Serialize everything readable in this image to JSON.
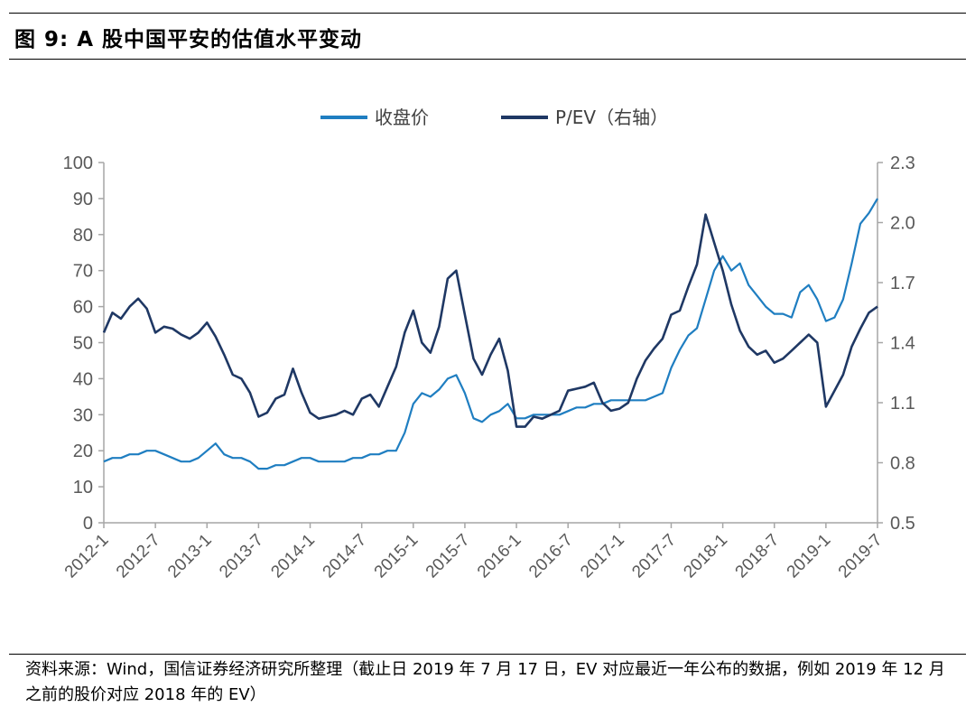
{
  "header": {
    "title": "图 9:  A 股中国平安的估值水平变动"
  },
  "footer": {
    "source": "资料来源：Wind，国信证券经济研究所整理（截止日 2019 年 7 月 17 日，EV 对应最近一年公布的数据，例如 2019 年 12 月之前的股价对应 2018 年的 EV）"
  },
  "chart_data": {
    "type": "line",
    "title": "",
    "legend_position": "top-center",
    "grid": false,
    "x_start": "2012-01",
    "x_end": "2019-07",
    "x_tick_labels": [
      "2012-1",
      "2012-7",
      "2013-1",
      "2013-7",
      "2014-1",
      "2014-7",
      "2015-1",
      "2015-7",
      "2016-1",
      "2016-7",
      "2017-1",
      "2017-7",
      "2018-1",
      "2018-7",
      "2019-1",
      "2019-7"
    ],
    "y_left": {
      "min": 0,
      "max": 100,
      "ticks": [
        "0",
        "10",
        "20",
        "30",
        "40",
        "50",
        "60",
        "70",
        "80",
        "90",
        "100"
      ]
    },
    "y_right": {
      "min": 0.5,
      "max": 2.3,
      "ticks": [
        "0.5",
        "0.8",
        "1.1",
        "1.4",
        "1.7",
        "2.0",
        "2.3"
      ]
    },
    "series": [
      {
        "name": "收盘价",
        "axis": "left",
        "color": "#1f7ec1",
        "x": [
          "2012-01",
          "2012-02",
          "2012-03",
          "2012-04",
          "2012-05",
          "2012-06",
          "2012-07",
          "2012-08",
          "2012-09",
          "2012-10",
          "2012-11",
          "2012-12",
          "2013-01",
          "2013-02",
          "2013-03",
          "2013-04",
          "2013-05",
          "2013-06",
          "2013-07",
          "2013-08",
          "2013-09",
          "2013-10",
          "2013-11",
          "2013-12",
          "2014-01",
          "2014-02",
          "2014-03",
          "2014-04",
          "2014-05",
          "2014-06",
          "2014-07",
          "2014-08",
          "2014-09",
          "2014-10",
          "2014-11",
          "2014-12",
          "2015-01",
          "2015-02",
          "2015-03",
          "2015-04",
          "2015-05",
          "2015-06",
          "2015-07",
          "2015-08",
          "2015-09",
          "2015-10",
          "2015-11",
          "2015-12",
          "2016-01",
          "2016-02",
          "2016-03",
          "2016-04",
          "2016-05",
          "2016-06",
          "2016-07",
          "2016-08",
          "2016-09",
          "2016-10",
          "2016-11",
          "2016-12",
          "2017-01",
          "2017-02",
          "2017-03",
          "2017-04",
          "2017-05",
          "2017-06",
          "2017-07",
          "2017-08",
          "2017-09",
          "2017-10",
          "2017-11",
          "2017-12",
          "2018-01",
          "2018-02",
          "2018-03",
          "2018-04",
          "2018-05",
          "2018-06",
          "2018-07",
          "2018-08",
          "2018-09",
          "2018-10",
          "2018-11",
          "2018-12",
          "2019-01",
          "2019-02",
          "2019-03",
          "2019-04",
          "2019-05",
          "2019-06",
          "2019-07"
        ],
        "values": [
          17,
          18,
          18,
          19,
          19,
          20,
          20,
          19,
          18,
          17,
          17,
          18,
          20,
          22,
          19,
          18,
          18,
          17,
          15,
          15,
          16,
          16,
          17,
          18,
          18,
          17,
          17,
          17,
          17,
          18,
          18,
          19,
          19,
          20,
          20,
          25,
          33,
          36,
          35,
          37,
          40,
          41,
          36,
          29,
          28,
          30,
          31,
          33,
          29,
          29,
          30,
          30,
          30,
          30,
          31,
          32,
          32,
          33,
          33,
          34,
          34,
          34,
          34,
          34,
          35,
          36,
          43,
          48,
          52,
          54,
          62,
          70,
          74,
          70,
          72,
          66,
          63,
          60,
          58,
          58,
          57,
          64,
          66,
          62,
          56,
          57,
          62,
          72,
          83,
          86,
          90
        ]
      },
      {
        "name": "P/EV（右轴）",
        "axis": "right",
        "color": "#1f3864",
        "x": [
          "2012-01",
          "2012-02",
          "2012-03",
          "2012-04",
          "2012-05",
          "2012-06",
          "2012-07",
          "2012-08",
          "2012-09",
          "2012-10",
          "2012-11",
          "2012-12",
          "2013-01",
          "2013-02",
          "2013-03",
          "2013-04",
          "2013-05",
          "2013-06",
          "2013-07",
          "2013-08",
          "2013-09",
          "2013-10",
          "2013-11",
          "2013-12",
          "2014-01",
          "2014-02",
          "2014-03",
          "2014-04",
          "2014-05",
          "2014-06",
          "2014-07",
          "2014-08",
          "2014-09",
          "2014-10",
          "2014-11",
          "2014-12",
          "2015-01",
          "2015-02",
          "2015-03",
          "2015-04",
          "2015-05",
          "2015-06",
          "2015-07",
          "2015-08",
          "2015-09",
          "2015-10",
          "2015-11",
          "2015-12",
          "2016-01",
          "2016-02",
          "2016-03",
          "2016-04",
          "2016-05",
          "2016-06",
          "2016-07",
          "2016-08",
          "2016-09",
          "2016-10",
          "2016-11",
          "2016-12",
          "2017-01",
          "2017-02",
          "2017-03",
          "2017-04",
          "2017-05",
          "2017-06",
          "2017-07",
          "2017-08",
          "2017-09",
          "2017-10",
          "2017-11",
          "2017-12",
          "2018-01",
          "2018-02",
          "2018-03",
          "2018-04",
          "2018-05",
          "2018-06",
          "2018-07",
          "2018-08",
          "2018-09",
          "2018-10",
          "2018-11",
          "2018-12",
          "2019-01",
          "2019-02",
          "2019-03",
          "2019-04",
          "2019-05",
          "2019-06",
          "2019-07"
        ],
        "values": [
          1.45,
          1.55,
          1.52,
          1.58,
          1.62,
          1.57,
          1.45,
          1.48,
          1.47,
          1.44,
          1.42,
          1.45,
          1.5,
          1.43,
          1.34,
          1.24,
          1.22,
          1.15,
          1.03,
          1.05,
          1.12,
          1.14,
          1.27,
          1.15,
          1.05,
          1.02,
          1.03,
          1.04,
          1.06,
          1.04,
          1.12,
          1.14,
          1.08,
          1.18,
          1.28,
          1.45,
          1.56,
          1.4,
          1.35,
          1.48,
          1.72,
          1.76,
          1.54,
          1.32,
          1.24,
          1.34,
          1.42,
          1.26,
          0.98,
          0.98,
          1.03,
          1.02,
          1.04,
          1.06,
          1.16,
          1.17,
          1.18,
          1.2,
          1.1,
          1.06,
          1.07,
          1.1,
          1.22,
          1.31,
          1.37,
          1.42,
          1.54,
          1.56,
          1.68,
          1.79,
          2.04,
          1.9,
          1.76,
          1.59,
          1.46,
          1.38,
          1.34,
          1.36,
          1.3,
          1.32,
          1.36,
          1.4,
          1.44,
          1.4,
          1.08,
          1.16,
          1.24,
          1.38,
          1.47,
          1.55,
          1.58
        ]
      }
    ]
  }
}
